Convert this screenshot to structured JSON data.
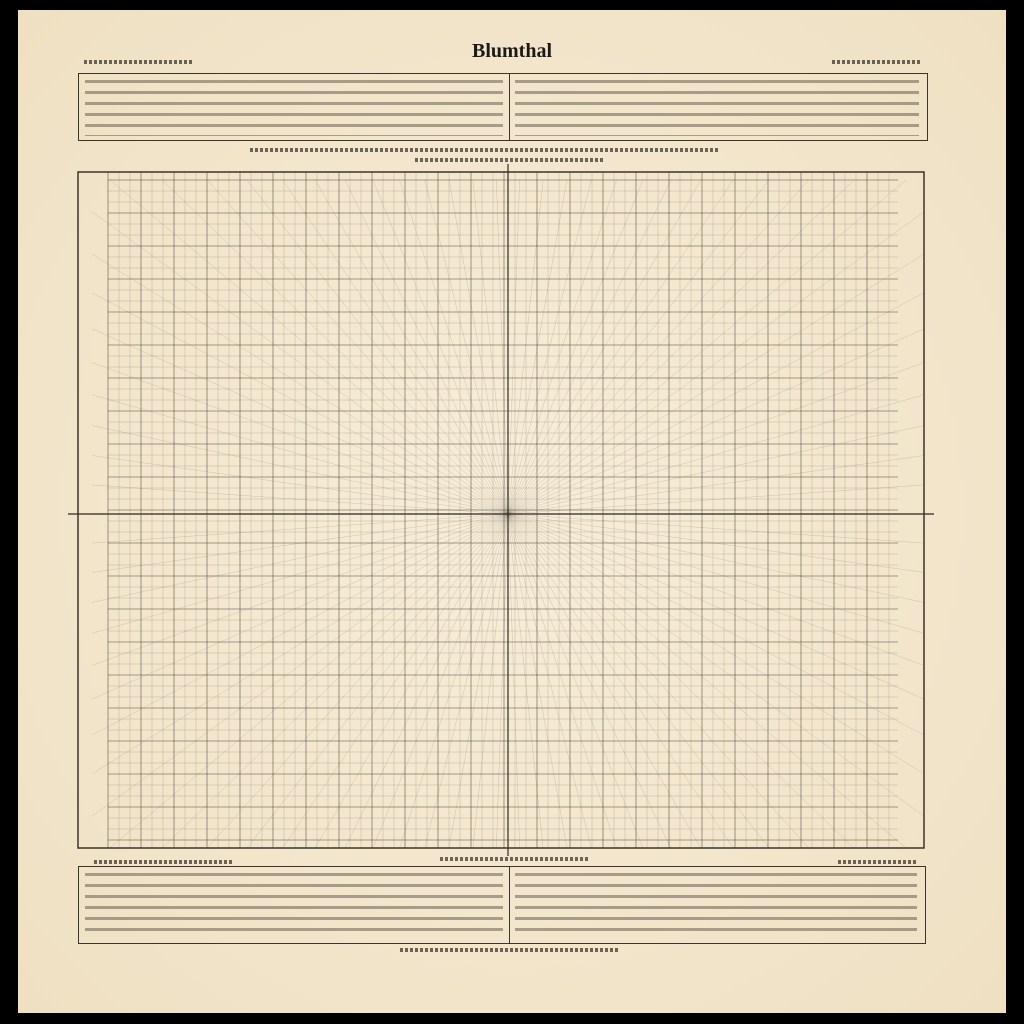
{
  "document": {
    "title": "Blumthal",
    "colors": {
      "paper": "#f4e8cf",
      "ink": "#3a342c"
    }
  }
}
